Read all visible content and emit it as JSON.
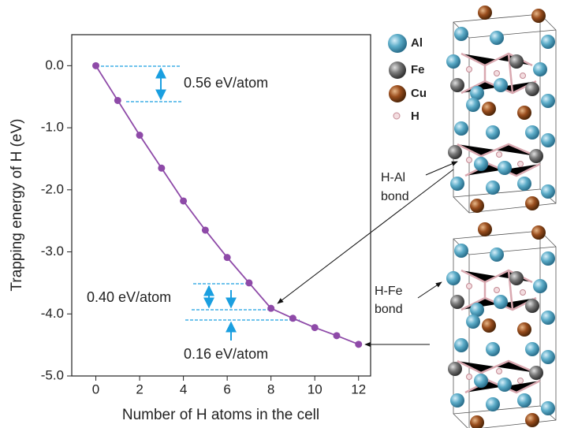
{
  "chart_data": {
    "type": "line",
    "x_label": "Number of H atoms in the cell",
    "y_label": "Trapping energy of H (eV)",
    "x": [
      0,
      1,
      2,
      3,
      4,
      5,
      6,
      7,
      8,
      9,
      10,
      11,
      12
    ],
    "values": [
      0,
      -0.56,
      -1.12,
      -1.65,
      -2.18,
      -2.65,
      -3.09,
      -3.5,
      -3.91,
      -4.07,
      -4.22,
      -4.35,
      -4.49
    ],
    "color": "#8e4aa8",
    "xlim": [
      -1.1,
      12.55
    ],
    "ylim": [
      -5,
      0.5
    ],
    "xticks": [
      0,
      2,
      4,
      6,
      8,
      10,
      12
    ],
    "yticks": [
      {
        "value": 0,
        "label": "0.0"
      },
      {
        "value": -1,
        "label": "-1.0"
      },
      {
        "value": -2,
        "label": "-2.0"
      },
      {
        "value": -3,
        "label": "-3.0"
      },
      {
        "value": -4,
        "label": "-4.0"
      },
      {
        "value": -5,
        "label": "-5.0"
      }
    ],
    "annotations": [
      "0.56 eV/atom",
      "0.40 eV/atom",
      "0.16 eV/atom"
    ]
  },
  "structures": {
    "legend": [
      "Al",
      "Fe",
      "Cu",
      "H"
    ],
    "labels": [
      [
        "H-Al",
        "bond"
      ],
      [
        "H-Fe",
        "bond"
      ]
    ]
  }
}
